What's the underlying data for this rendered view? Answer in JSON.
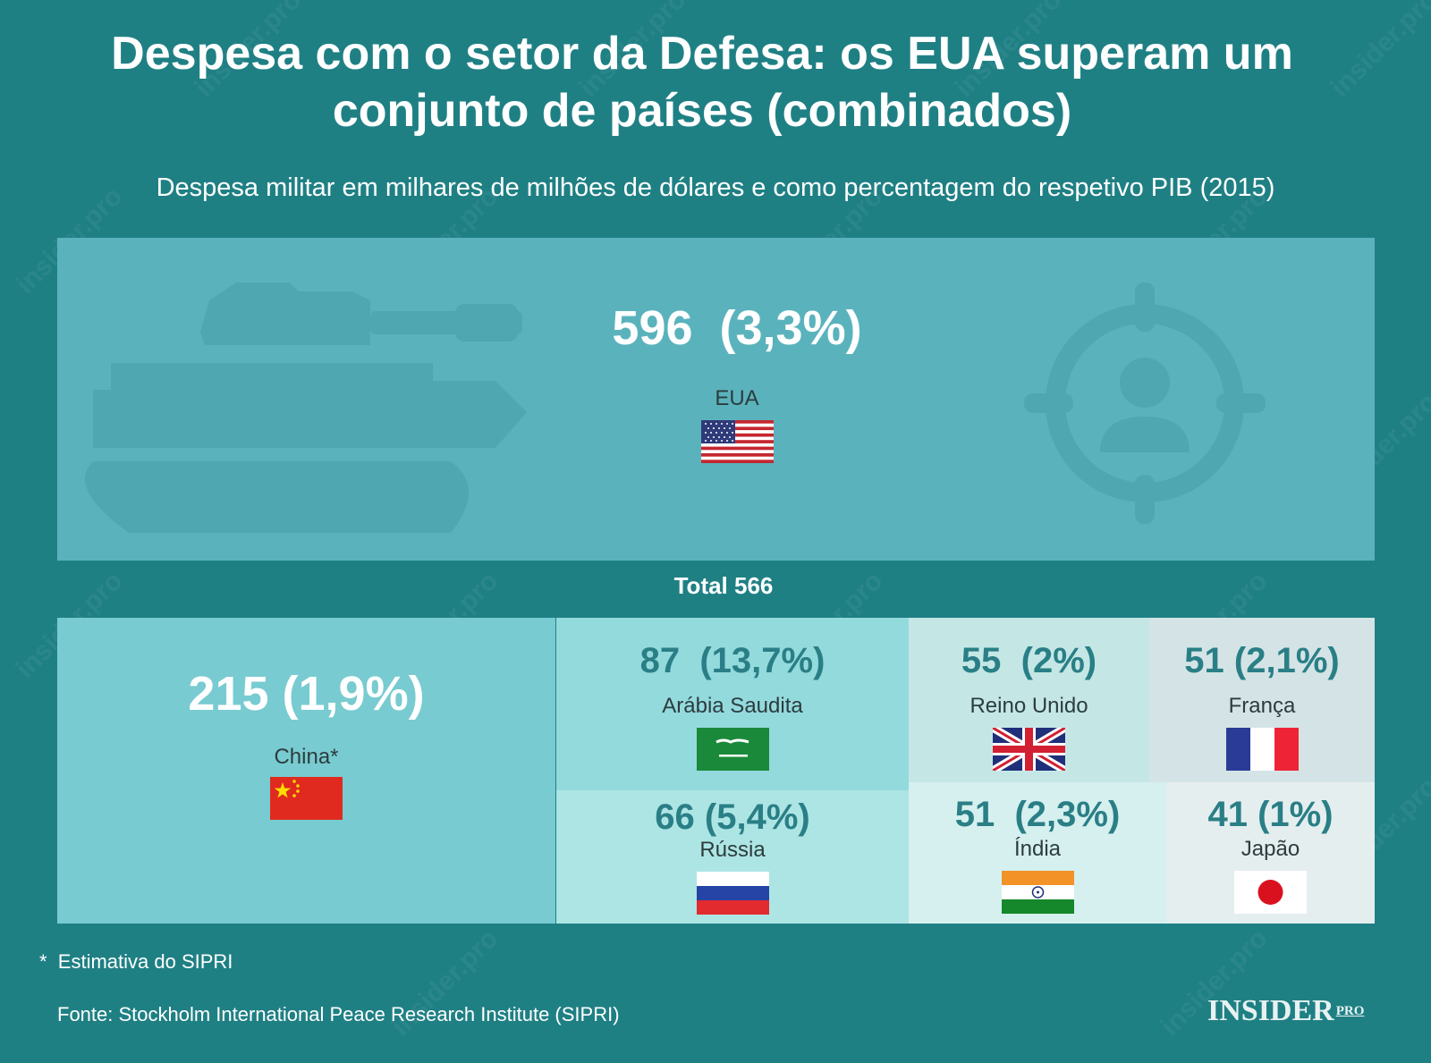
{
  "title": "Despesa com o setor da Defesa: os EUA superam um conjunto de países (combinados)",
  "subtitle": "Despesa militar em milhares de milhões de dólares e como percentagem do respetivo PIB (2015)",
  "total_label": "Total 566",
  "footnote": "*  Estimativa do SIPRI",
  "source": "Fonte: Stockholm International Peace Research Institute (SIPRI)",
  "logo": {
    "main": "INSIDER",
    "sup": "PRO"
  },
  "watermark": "insider.pro",
  "icons": [
    "tank-icon",
    "target-person-icon",
    "flag-icons"
  ],
  "colors": {
    "background": "#1f8084",
    "usa": "#5ab3bc",
    "china": "#78cbd1",
    "saudi": "#93dadd",
    "russia": "#ade5e4",
    "uk": "#c4e7e6",
    "india": "#d5f0ef",
    "france": "#d4e4e6",
    "japan": "#e5eeef"
  },
  "chart_data": {
    "type": "treemap",
    "title": "Despesa com o setor da Defesa: os EUA superam um conjunto de países (combinados)",
    "subtitle": "Despesa militar em milhares de milhões de dólares e como percentagem do respetivo PIB (2015)",
    "total_others": 566,
    "items": [
      {
        "country": "EUA",
        "value": 596,
        "pct_gdp": "3,3%",
        "label": "596  (3,3%)"
      },
      {
        "country": "China*",
        "value": 215,
        "pct_gdp": "1,9%",
        "label": "215 (1,9%)"
      },
      {
        "country": "Arábia Saudita",
        "value": 87,
        "pct_gdp": "13,7%",
        "label": "87  (13,7%)"
      },
      {
        "country": "Rússia",
        "value": 66,
        "pct_gdp": "5,4%",
        "label": "66 (5,4%)"
      },
      {
        "country": "Reino Unido",
        "value": 55,
        "pct_gdp": "2%",
        "label": "55  (2%)"
      },
      {
        "country": "Índia",
        "value": 51,
        "pct_gdp": "2,3%",
        "label": "51  (2,3%)"
      },
      {
        "country": "França",
        "value": 51,
        "pct_gdp": "2,1%",
        "label": "51 (2,1%)"
      },
      {
        "country": "Japão",
        "value": 41,
        "pct_gdp": "1%",
        "label": "41 (1%)"
      }
    ]
  }
}
